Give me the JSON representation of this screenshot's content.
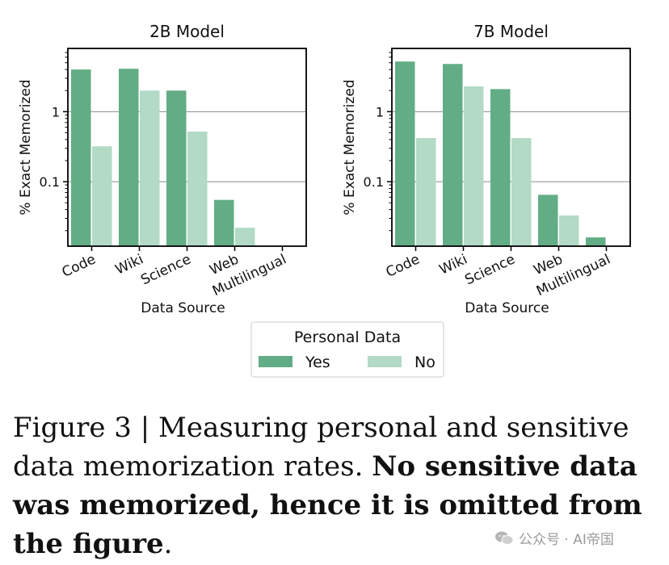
{
  "chart_data": [
    {
      "type": "bar",
      "title": "2B Model",
      "xlabel": "Data Source",
      "ylabel": "% Exact Memorized",
      "yscale": "log",
      "ylim": [
        0.012,
        8
      ],
      "yticks": [
        {
          "value": 1,
          "label": "1"
        },
        {
          "value": 0.1,
          "label": "0.1"
        }
      ],
      "grid": "horizontal",
      "categories": [
        "Code",
        "Wiki",
        "Science",
        "Web",
        "Multilingual"
      ],
      "series": [
        {
          "name": "Yes",
          "values": [
            4.0,
            4.1,
            2.0,
            0.055,
            null
          ]
        },
        {
          "name": "No",
          "values": [
            0.32,
            2.0,
            0.52,
            0.022,
            null
          ]
        }
      ]
    },
    {
      "type": "bar",
      "title": "7B Model",
      "xlabel": "Data Source",
      "ylabel": "% Exact Memorized",
      "yscale": "log",
      "ylim": [
        0.012,
        8
      ],
      "yticks": [
        {
          "value": 1,
          "label": "1"
        },
        {
          "value": 0.1,
          "label": "0.1"
        }
      ],
      "grid": "horizontal",
      "categories": [
        "Code",
        "Wiki",
        "Science",
        "Web",
        "Multilingual"
      ],
      "series": [
        {
          "name": "Yes",
          "values": [
            5.2,
            4.8,
            2.1,
            0.065,
            0.016
          ]
        },
        {
          "name": "No",
          "values": [
            0.42,
            2.3,
            0.42,
            0.033,
            null
          ]
        }
      ]
    }
  ],
  "legend": {
    "title": "Personal Data",
    "placement": "bottom-center",
    "items": [
      {
        "label": "Yes",
        "color": "#62ad85"
      },
      {
        "label": "No",
        "color": "#b2dac6"
      }
    ]
  },
  "colors": {
    "yes": "#62ad85",
    "no": "#b2dac6",
    "grid": "#8c8c8c"
  },
  "caption": {
    "prefix": "Figure 3 | Measuring personal and sensitive data memorization rates. ",
    "bold": "No sensitive data was memorized, hence it is omitted from the figure",
    "suffix": "."
  },
  "watermark": {
    "text": "公众号 · AI帝国",
    "icon": "wechat-icon"
  }
}
